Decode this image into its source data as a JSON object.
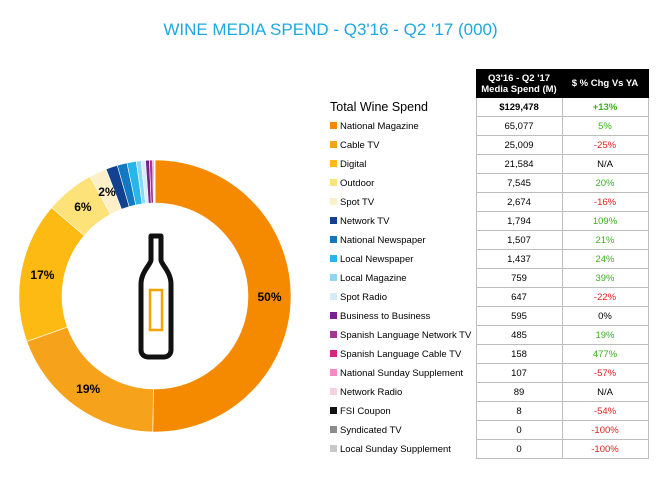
{
  "title": "WINE MEDIA SPEND - Q3'16 - Q2 '17 (000)",
  "table": {
    "headers": {
      "spend": "Q3'16 - Q2 '17 Media Spend (M)",
      "change": "$ % Chg Vs YA"
    },
    "total": {
      "label": "Total Wine Spend",
      "spend": "$129,478",
      "change": "+13%",
      "change_color": "#3cb01d"
    }
  },
  "chart_data": {
    "type": "pie",
    "donut": true,
    "title": "",
    "slices": [
      {
        "name": "National Magazine",
        "value": 65077,
        "color": "#f58a00",
        "label": "50%"
      },
      {
        "name": "Cable TV",
        "value": 25009,
        "color": "#f7a21b",
        "label": "19%"
      },
      {
        "name": "Digital",
        "value": 21584,
        "color": "#fcba12",
        "label": "17%"
      },
      {
        "name": "Outdoor",
        "value": 7545,
        "color": "#fde27a",
        "label": "6%"
      },
      {
        "name": "Spot TV",
        "value": 2674,
        "color": "#fdf0c8",
        "label": "2%"
      },
      {
        "name": "Network TV",
        "value": 1794,
        "color": "#12428f",
        "label": ""
      },
      {
        "name": "National Newspaper",
        "value": 1507,
        "color": "#1378c2",
        "label": ""
      },
      {
        "name": "Local Newspaper",
        "value": 1437,
        "color": "#27b6ea",
        "label": ""
      },
      {
        "name": "Local Magazine",
        "value": 759,
        "color": "#8fd6f3",
        "label": ""
      },
      {
        "name": "Spot Radio",
        "value": 647,
        "color": "#d3eef9",
        "label": ""
      },
      {
        "name": "Business to Business",
        "value": 595,
        "color": "#7b1f8e",
        "label": ""
      },
      {
        "name": "Spanish Language Network TV",
        "value": 485,
        "color": "#a73596",
        "label": ""
      },
      {
        "name": "Spanish Language Cable TV",
        "value": 158,
        "color": "#d6247f",
        "label": ""
      },
      {
        "name": "National Sunday Supplement",
        "value": 107,
        "color": "#f18bc2",
        "label": ""
      },
      {
        "name": "Network Radio",
        "value": 89,
        "color": "#f9cfe4",
        "label": ""
      },
      {
        "name": "FSI Coupon",
        "value": 8,
        "color": "#111111",
        "label": ""
      },
      {
        "name": "Syndicated TV",
        "value": 0,
        "color": "#8c8c8c",
        "label": ""
      },
      {
        "name": "Local Sunday Supplement",
        "value": 0,
        "color": "#c8c8c8",
        "label": ""
      }
    ],
    "rows": [
      {
        "name": "National Magazine",
        "spend": "65,077",
        "change": "5%",
        "change_color": "#3cb01d"
      },
      {
        "name": "Cable TV",
        "spend": "25,009",
        "change": "-25%",
        "change_color": "#e0201e"
      },
      {
        "name": "Digital",
        "spend": "21,584",
        "change": "N/A",
        "change_color": "#000000"
      },
      {
        "name": "Outdoor",
        "spend": "7,545",
        "change": "20%",
        "change_color": "#3cb01d"
      },
      {
        "name": "Spot TV",
        "spend": "2,674",
        "change": "-16%",
        "change_color": "#e0201e"
      },
      {
        "name": "Network TV",
        "spend": "1,794",
        "change": "109%",
        "change_color": "#3cb01d"
      },
      {
        "name": "National Newspaper",
        "spend": "1,507",
        "change": "21%",
        "change_color": "#3cb01d"
      },
      {
        "name": "Local Newspaper",
        "spend": "1,437",
        "change": "24%",
        "change_color": "#3cb01d"
      },
      {
        "name": "Local Magazine",
        "spend": "759",
        "change": "39%",
        "change_color": "#3cb01d"
      },
      {
        "name": "Spot Radio",
        "spend": "647",
        "change": "-22%",
        "change_color": "#e0201e"
      },
      {
        "name": "Business to Business",
        "spend": "595",
        "change": "0%",
        "change_color": "#000000"
      },
      {
        "name": "Spanish Language Network TV",
        "spend": "485",
        "change": "19%",
        "change_color": "#3cb01d"
      },
      {
        "name": "Spanish Language Cable TV",
        "spend": "158",
        "change": "477%",
        "change_color": "#3cb01d"
      },
      {
        "name": "National Sunday Supplement",
        "spend": "107",
        "change": "-57%",
        "change_color": "#e0201e"
      },
      {
        "name": "Network Radio",
        "spend": "89",
        "change": "N/A",
        "change_color": "#000000"
      },
      {
        "name": "FSI Coupon",
        "spend": "8",
        "change": "-54%",
        "change_color": "#e0201e"
      },
      {
        "name": "Syndicated TV",
        "spend": "0",
        "change": "-100%",
        "change_color": "#e0201e"
      },
      {
        "name": "Local Sunday Supplement",
        "spend": "0",
        "change": "-100%",
        "change_color": "#e0201e"
      }
    ],
    "bottle_icon": "wine-bottle-icon"
  }
}
